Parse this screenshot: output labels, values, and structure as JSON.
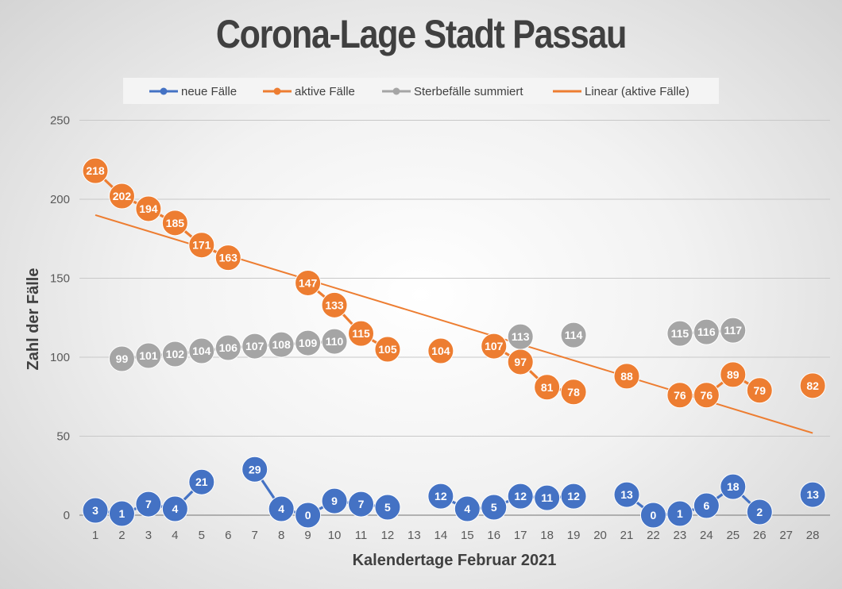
{
  "chart_data": {
    "type": "line",
    "title": "Corona-Lage Stadt Passau",
    "xlabel": "Kalendertage Februar 2021",
    "ylabel": "Zahl der Fälle",
    "ylim": [
      0,
      250
    ],
    "yticks": [
      0,
      50,
      100,
      150,
      200,
      250
    ],
    "x": [
      1,
      2,
      3,
      4,
      5,
      6,
      7,
      8,
      9,
      10,
      11,
      12,
      13,
      14,
      15,
      16,
      17,
      18,
      19,
      20,
      21,
      22,
      23,
      24,
      25,
      26,
      27,
      28
    ],
    "legend_position": "top",
    "series": [
      {
        "name": "neue Fälle",
        "color": "#4472c4",
        "values": [
          3,
          1,
          7,
          4,
          21,
          null,
          29,
          4,
          0,
          9,
          7,
          5,
          null,
          12,
          4,
          5,
          12,
          11,
          12,
          null,
          13,
          0,
          1,
          6,
          18,
          2,
          null,
          13
        ]
      },
      {
        "name": "aktive Fälle",
        "color": "#ed7d31",
        "values": [
          218,
          202,
          194,
          185,
          171,
          163,
          null,
          null,
          147,
          133,
          115,
          105,
          null,
          104,
          null,
          107,
          97,
          81,
          78,
          null,
          88,
          null,
          76,
          76,
          89,
          79,
          null,
          82
        ]
      },
      {
        "name": "Sterbefälle summiert",
        "color": "#a5a5a5",
        "values": [
          null,
          99,
          101,
          102,
          104,
          106,
          107,
          108,
          109,
          110,
          null,
          null,
          null,
          null,
          null,
          null,
          113,
          null,
          114,
          null,
          null,
          null,
          115,
          116,
          117,
          null,
          null,
          null
        ]
      }
    ],
    "trendline": {
      "name": "Linear (aktive Fälle)",
      "color": "#ed7d31",
      "start": [
        1,
        190
      ],
      "end": [
        28,
        52
      ]
    }
  }
}
